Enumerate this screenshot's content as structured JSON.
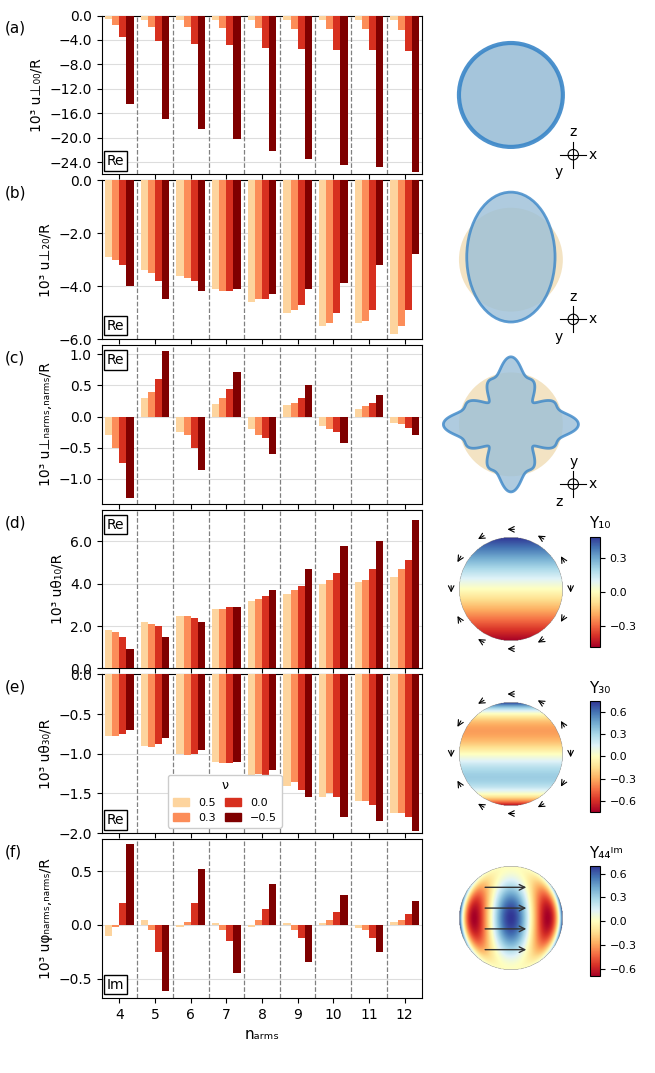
{
  "chart_data": [
    {
      "type": "bar",
      "title": "(a)",
      "ylabel": "10³ u⊥₀₀/R",
      "categories": [
        "4",
        "5",
        "6",
        "7",
        "8",
        "9",
        "10",
        "11",
        "12"
      ],
      "annotations": [
        {
          "text": "Re"
        }
      ],
      "grid": true,
      "tick_labels": "y",
      "ylim": [
        -26,
        0
      ],
      "yticks": [
        {
          "value": 0,
          "label": "0.0"
        },
        {
          "value": -4,
          "label": "−4.0"
        },
        {
          "value": -8,
          "label": "−8.0"
        },
        {
          "value": -12,
          "label": "−12.0"
        },
        {
          "value": -16,
          "label": "−16.0"
        },
        {
          "value": -20,
          "label": "−20.0"
        },
        {
          "value": -24,
          "label": "−24.0"
        }
      ],
      "series": [
        {
          "name": "0.5",
          "color": "#fdd49e",
          "values": [
            -0.6,
            -0.7,
            -0.7,
            -0.8,
            -0.8,
            -0.8,
            -0.8,
            -0.8,
            -0.8
          ]
        },
        {
          "name": "0.3",
          "color": "#fc8d59",
          "values": [
            -1.5,
            -1.8,
            -1.9,
            -2.0,
            -2.1,
            -2.2,
            -2.2,
            -2.2,
            -2.3
          ]
        },
        {
          "name": "0.0",
          "color": "#d7301f",
          "values": [
            -3.5,
            -4.2,
            -4.6,
            -4.9,
            -5.3,
            -5.5,
            -5.6,
            -5.7,
            -5.8
          ]
        },
        {
          "name": "−0.5",
          "color": "#7f0000",
          "values": [
            -14.5,
            -17.0,
            -18.5,
            -20.2,
            -22.2,
            -23.5,
            -24.4,
            -24.8,
            -25.6
          ]
        }
      ],
      "illustration": {
        "shape": "sphere",
        "frame_labels": {
          "horizontal": "x",
          "vertical": "z",
          "out": "y"
        }
      }
    },
    {
      "type": "bar",
      "title": "(b)",
      "ylabel": "10³ u⊥₂₀/R",
      "categories": [
        "4",
        "5",
        "6",
        "7",
        "8",
        "9",
        "10",
        "11",
        "12"
      ],
      "annotations": [
        {
          "text": "Re"
        }
      ],
      "grid": true,
      "tick_labels": "y",
      "ylim": [
        -6,
        0
      ],
      "yticks": [
        {
          "value": 0,
          "label": "0.0"
        },
        {
          "value": -2,
          "label": "−2.0"
        },
        {
          "value": -4,
          "label": "−4.0"
        },
        {
          "value": -6,
          "label": "−6.0"
        }
      ],
      "series": [
        {
          "name": "0.5",
          "color": "#fdd49e",
          "values": [
            -2.9,
            -3.4,
            -3.6,
            -4.1,
            -4.6,
            -5.0,
            -5.5,
            -5.4,
            -5.8
          ]
        },
        {
          "name": "0.3",
          "color": "#fc8d59",
          "values": [
            -3.0,
            -3.5,
            -3.7,
            -4.2,
            -4.5,
            -4.9,
            -5.4,
            -5.3,
            -5.5
          ]
        },
        {
          "name": "0.0",
          "color": "#d7301f",
          "values": [
            -3.2,
            -3.8,
            -3.8,
            -4.2,
            -4.5,
            -4.7,
            -5.0,
            -4.9,
            -4.9
          ]
        },
        {
          "name": "−0.5",
          "color": "#7f0000",
          "values": [
            -4.0,
            -4.5,
            -4.2,
            -4.1,
            -4.3,
            -4.1,
            -3.9,
            -3.2,
            -2.8
          ]
        }
      ],
      "illustration": {
        "shape": "prolate",
        "frame_labels": {
          "horizontal": "x",
          "vertical": "z",
          "out": "y"
        }
      }
    },
    {
      "type": "bar",
      "title": "(c)",
      "ylabel": "10³ u⊥ₙₐᵣₘₛ,ₙₐᵣₘₛ/R",
      "categories": [
        "4",
        "5",
        "6",
        "7",
        "8",
        "9",
        "10",
        "11",
        "12"
      ],
      "annotations": [
        {
          "text": "Re"
        }
      ],
      "grid": true,
      "tick_labels": "y",
      "ylim": [
        -1.4,
        1.15
      ],
      "yticks": [
        {
          "value": -1.0,
          "label": "−1.0"
        },
        {
          "value": -0.5,
          "label": "−0.5"
        },
        0.0,
        0.5,
        1.0
      ],
      "series": [
        {
          "name": "0.5",
          "color": "#fdd49e",
          "values": [
            -0.3,
            0.3,
            -0.25,
            0.2,
            -0.2,
            0.18,
            -0.15,
            0.12,
            -0.1
          ]
        },
        {
          "name": "0.3",
          "color": "#fc8d59",
          "values": [
            -0.5,
            0.4,
            -0.3,
            0.3,
            -0.3,
            0.22,
            -0.2,
            0.17,
            -0.12
          ]
        },
        {
          "name": "0.0",
          "color": "#d7301f",
          "values": [
            -0.75,
            0.6,
            -0.5,
            0.45,
            -0.35,
            0.3,
            -0.25,
            0.22,
            -0.18
          ]
        },
        {
          "name": "−0.5",
          "color": "#7f0000",
          "values": [
            -1.3,
            1.05,
            -0.85,
            0.72,
            -0.6,
            0.5,
            -0.42,
            0.35,
            -0.3
          ]
        }
      ],
      "illustration": {
        "shape": "lobed",
        "frame_labels": {
          "horizontal": "x",
          "vertical": "y",
          "out": "z"
        }
      }
    },
    {
      "type": "bar",
      "title": "(d)",
      "ylabel": "10³ uθ₁₀/R",
      "categories": [
        "4",
        "5",
        "6",
        "7",
        "8",
        "9",
        "10",
        "11",
        "12"
      ],
      "annotations": [
        {
          "text": "Re"
        }
      ],
      "grid": true,
      "tick_labels": "y",
      "ylim": [
        0,
        7.5
      ],
      "yticks": [
        {
          "value": 0,
          "label": "0.0"
        },
        {
          "value": 2,
          "label": "2.0"
        },
        {
          "value": 4,
          "label": "4.0"
        },
        {
          "value": 6,
          "label": "6.0"
        }
      ],
      "series": [
        {
          "name": "0.5",
          "color": "#fdd49e",
          "values": [
            1.8,
            2.2,
            2.5,
            2.8,
            3.2,
            3.5,
            4.0,
            4.1,
            4.3
          ]
        },
        {
          "name": "0.3",
          "color": "#fc8d59",
          "values": [
            1.7,
            2.1,
            2.5,
            2.8,
            3.3,
            3.7,
            4.2,
            4.2,
            4.7
          ]
        },
        {
          "name": "0.0",
          "color": "#d7301f",
          "values": [
            1.5,
            2.0,
            2.4,
            2.9,
            3.4,
            3.9,
            4.5,
            4.7,
            5.1
          ]
        },
        {
          "name": "−0.5",
          "color": "#7f0000",
          "values": [
            0.9,
            1.5,
            2.2,
            2.9,
            3.7,
            4.7,
            5.8,
            6.0,
            7.0
          ]
        }
      ],
      "illustration": {
        "shape": "Y10",
        "colorbar": {
          "label": "Y₁₀",
          "range": [
            -0.49,
            0.49
          ],
          "ticks": [
            {
              "value": -0.3,
              "label": "−0.3"
            },
            0.0,
            0.3
          ]
        }
      }
    },
    {
      "type": "bar",
      "title": "(e)",
      "ylabel": "10³ uθ₃₀/R",
      "categories": [
        "4",
        "5",
        "6",
        "7",
        "8",
        "9",
        "10",
        "11",
        "12"
      ],
      "annotations": [
        {
          "text": "Re"
        }
      ],
      "grid": true,
      "tick_labels": "y",
      "legend": "lower left",
      "legend_title": "ν",
      "ylim": [
        -2.0,
        0
      ],
      "yticks": [
        {
          "value": 0,
          "label": "0.0"
        },
        {
          "value": -0.5,
          "label": "−0.5"
        },
        {
          "value": -1.0,
          "label": "−1.0"
        },
        {
          "value": -1.5,
          "label": "−1.5"
        },
        {
          "value": -2.0,
          "label": "−2.0"
        }
      ],
      "series": [
        {
          "name": "0.5",
          "color": "#fdd49e",
          "values": [
            -0.77,
            -0.9,
            -1.0,
            -1.1,
            -1.3,
            -1.4,
            -1.55,
            -1.6,
            -1.75
          ]
        },
        {
          "name": "0.3",
          "color": "#fc8d59",
          "values": [
            -0.77,
            -0.92,
            -1.02,
            -1.12,
            -1.25,
            -1.35,
            -1.5,
            -1.6,
            -1.75
          ]
        },
        {
          "name": "0.0",
          "color": "#d7301f",
          "values": [
            -0.75,
            -0.88,
            -1.0,
            -1.12,
            -1.3,
            -1.45,
            -1.55,
            -1.65,
            -1.8
          ]
        },
        {
          "name": "−0.5",
          "color": "#7f0000",
          "values": [
            -0.7,
            -0.8,
            -0.95,
            -1.1,
            -1.2,
            -1.55,
            -1.8,
            -1.85,
            -1.97
          ]
        }
      ],
      "illustration": {
        "shape": "Y30",
        "colorbar": {
          "label": "Y₃₀",
          "range": [
            -0.75,
            0.75
          ],
          "ticks": [
            {
              "value": -0.6,
              "label": "−0.6"
            },
            {
              "value": -0.3,
              "label": "−0.3"
            },
            0.0,
            0.3,
            0.6
          ]
        }
      }
    },
    {
      "type": "bar",
      "title": "(f)",
      "ylabel": "10³ uφₙₐᵣₘₛ,ₙₐᵣₘₛ/R",
      "xlabel": "nₐᵣₘₛ",
      "categories": [
        "4",
        "5",
        "6",
        "7",
        "8",
        "9",
        "10",
        "11",
        "12"
      ],
      "annotations": [
        {
          "text": "Im"
        }
      ],
      "grid": true,
      "ylim": [
        -0.68,
        0.8
      ],
      "yticks": [
        {
          "value": -0.5,
          "label": "−0.5"
        },
        0.0,
        0.5
      ],
      "series": [
        {
          "name": "0.5",
          "color": "#fdd49e",
          "values": [
            -0.1,
            0.05,
            -0.02,
            0.02,
            -0.02,
            0.02,
            0.02,
            -0.03,
            0.03
          ]
        },
        {
          "name": "0.3",
          "color": "#fc8d59",
          "values": [
            -0.02,
            -0.05,
            0.03,
            -0.05,
            0.05,
            -0.05,
            0.05,
            -0.05,
            0.05
          ]
        },
        {
          "name": "0.0",
          "color": "#d7301f",
          "values": [
            0.2,
            -0.25,
            0.2,
            -0.15,
            0.15,
            -0.12,
            0.12,
            -0.12,
            0.1
          ]
        },
        {
          "name": "−0.5",
          "color": "#7f0000",
          "values": [
            0.75,
            -0.62,
            0.52,
            -0.45,
            0.38,
            -0.35,
            0.28,
            -0.25,
            0.22
          ]
        }
      ],
      "illustration": {
        "shape": "Y44",
        "colorbar": {
          "label": "Y₄₄ᴵᵐ",
          "range": [
            -0.7,
            0.7
          ],
          "ticks": [
            {
              "value": -0.6,
              "label": "−0.6"
            },
            {
              "value": -0.3,
              "label": "−0.3"
            },
            0.0,
            0.3,
            0.6
          ]
        }
      }
    }
  ]
}
